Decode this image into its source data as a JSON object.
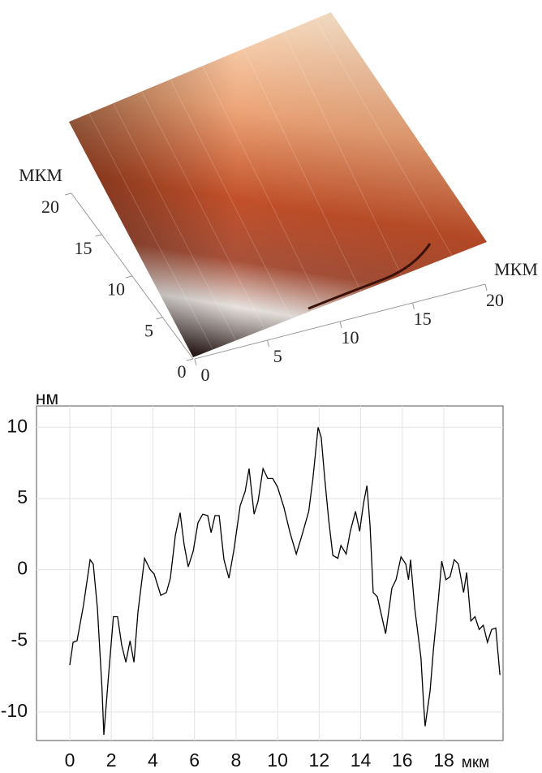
{
  "chart_data": [
    {
      "type": "surface3d",
      "xlabel": "МКМ",
      "ylabel": "МКМ",
      "xlim": [
        0,
        20
      ],
      "ylim": [
        0,
        20
      ],
      "xticks": [
        0,
        5,
        10,
        15,
        20
      ],
      "yticks": [
        0,
        5,
        10,
        15,
        20
      ]
    },
    {
      "type": "line",
      "xlabel": "мкм",
      "ylabel": "нм",
      "xlim": [
        -1.6,
        20.85
      ],
      "ylim": [
        -12,
        11.5
      ],
      "xticks": [
        0,
        2,
        4,
        6,
        8,
        10,
        12,
        14,
        16,
        18
      ],
      "yticks": [
        -10,
        -5,
        0,
        5,
        10
      ],
      "grid": true,
      "series": [
        {
          "color": "#000000",
          "x": [
            0,
            0.16,
            0.35,
            0.66,
            0.98,
            1.13,
            1.33,
            1.55,
            1.64,
            1.84,
            2.1,
            2.3,
            2.5,
            2.7,
            2.9,
            3.09,
            3.28,
            3.6,
            3.87,
            4.06,
            4.38,
            4.65,
            4.84,
            5.08,
            5.31,
            5.5,
            5.7,
            5.94,
            6.17,
            6.4,
            6.64,
            6.8,
            6.99,
            7.19,
            7.42,
            7.66,
            7.9,
            8.2,
            8.44,
            8.63,
            8.87,
            9.06,
            9.3,
            9.53,
            9.77,
            10.0,
            10.3,
            10.6,
            10.9,
            11.17,
            11.5,
            11.7,
            11.95,
            12.1,
            12.27,
            12.46,
            12.66,
            12.9,
            13.05,
            13.3,
            13.5,
            13.75,
            13.95,
            14.14,
            14.3,
            14.45,
            14.6,
            14.8,
            15.0,
            15.2,
            15.5,
            15.7,
            15.94,
            16.17,
            16.3,
            16.4,
            16.6,
            16.9,
            17.03,
            17.1,
            17.34,
            17.5,
            17.73,
            17.9,
            18.1,
            18.3,
            18.5,
            18.7,
            18.95,
            19.1,
            19.3,
            19.5,
            19.7,
            19.9,
            20.1,
            20.3,
            20.5,
            20.7
          ],
          "values": [
            -6.7,
            -5.1,
            -5.0,
            -2.5,
            0.7,
            0.4,
            -2.7,
            -8.3,
            -11.6,
            -7.9,
            -3.3,
            -3.3,
            -5.3,
            -6.5,
            -5.0,
            -6.5,
            -3.0,
            0.8,
            0,
            -0.3,
            -1.8,
            -1.6,
            -0.6,
            2.4,
            4.0,
            1.8,
            0.2,
            1.3,
            3.3,
            3.9,
            3.8,
            2.6,
            3.8,
            3.8,
            0.7,
            -0.6,
            1.4,
            4.5,
            5.5,
            7.1,
            3.9,
            4.8,
            7.1,
            6.4,
            6.4,
            5.8,
            4.4,
            2.6,
            1.1,
            2.4,
            4.1,
            6.4,
            10.0,
            9.3,
            6.4,
            3.5,
            1.0,
            0.8,
            1.7,
            1.1,
            2.7,
            4.1,
            2.7,
            4.7,
            5.9,
            3.1,
            -1.6,
            -1.9,
            -3.2,
            -4.5,
            -1.3,
            -0.7,
            0.9,
            0.4,
            -0.7,
            0.7,
            -2.7,
            -6.2,
            -9.5,
            -11.0,
            -8.5,
            -5.6,
            -2.2,
            0.6,
            -0.7,
            -0.5,
            0.7,
            0.4,
            -1.6,
            -0.2,
            -3.6,
            -3.3,
            -4.2,
            -3.9,
            -5.1,
            -4.2,
            -4.1,
            -7.4
          ]
        }
      ]
    }
  ]
}
